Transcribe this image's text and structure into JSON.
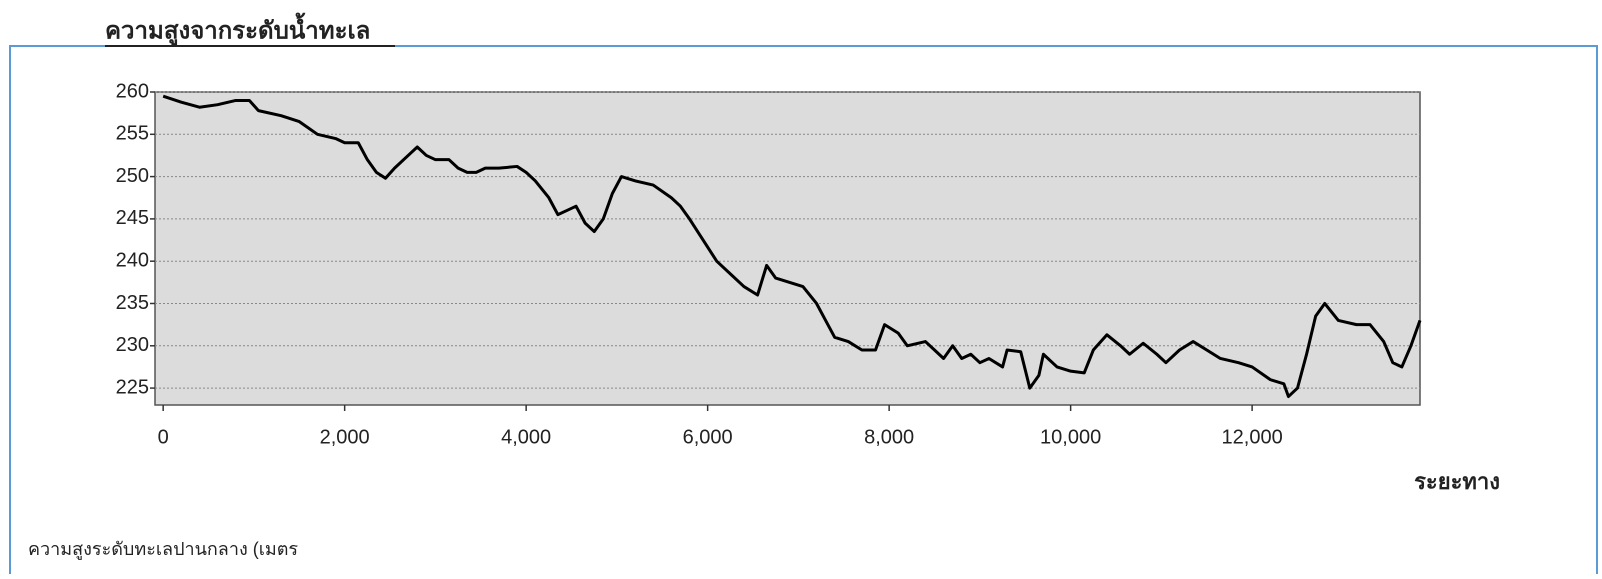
{
  "chart_data": {
    "type": "line",
    "title": "ความสูงจากระดับน้ำทะเล",
    "x_label": "ระยะทาง",
    "y_label": "ความสูงระดับทะเลปานกลาง (เมตร",
    "color": "#000000",
    "grid": true,
    "xlim": [
      -90,
      13850
    ],
    "ylim": [
      223,
      260
    ],
    "xticks": [
      0,
      {
        "value": 2000,
        "label": "2,000"
      },
      {
        "value": 4000,
        "label": "4,000"
      },
      {
        "value": 6000,
        "label": "6,000"
      },
      {
        "value": 8000,
        "label": "8,000"
      },
      {
        "value": 10000,
        "label": "10,000"
      },
      {
        "value": 12000,
        "label": "12,000"
      }
    ],
    "yticks": [
      225,
      230,
      235,
      240,
      245,
      250,
      255,
      260
    ],
    "x": [
      0,
      200,
      400,
      600,
      800,
      950,
      1050,
      1300,
      1500,
      1700,
      1900,
      2000,
      2150,
      2250,
      2350,
      2450,
      2550,
      2700,
      2800,
      2900,
      3000,
      3150,
      3250,
      3350,
      3450,
      3550,
      3700,
      3900,
      4000,
      4100,
      4250,
      4350,
      4450,
      4550,
      4650,
      4750,
      4850,
      4950,
      5050,
      5200,
      5400,
      5600,
      5700,
      5800,
      5950,
      6100,
      6250,
      6400,
      6550,
      6650,
      6750,
      6900,
      7050,
      7200,
      7300,
      7400,
      7550,
      7700,
      7850,
      7950,
      8100,
      8200,
      8400,
      8500,
      8600,
      8700,
      8800,
      8900,
      9000,
      9100,
      9250,
      9300,
      9450,
      9550,
      9650,
      9700,
      9850,
      10000,
      10150,
      10250,
      10400,
      10550,
      10650,
      10800,
      10950,
      11050,
      11200,
      11350,
      11500,
      11650,
      11850,
      12000,
      12200,
      12350,
      12400,
      12500,
      12600,
      12700,
      12800,
      12950,
      13150,
      13300,
      13450,
      13550,
      13650,
      13750,
      13850
    ],
    "values": [
      259.5,
      258.8,
      258.2,
      258.5,
      259,
      259,
      257.8,
      257.2,
      256.5,
      255,
      254.5,
      254,
      254,
      252,
      250.5,
      249.8,
      251,
      252.5,
      253.5,
      252.5,
      252,
      252,
      251,
      250.5,
      250.5,
      251,
      251,
      251.2,
      250.5,
      249.5,
      247.5,
      245.5,
      246,
      246.5,
      244.5,
      243.5,
      245,
      248,
      250,
      249.5,
      249,
      247.5,
      246.5,
      245,
      242.5,
      240,
      238.5,
      237,
      236,
      239.5,
      238,
      237.5,
      237,
      235,
      233,
      231,
      230.5,
      229.5,
      229.5,
      232.5,
      231.5,
      230,
      230.5,
      229.5,
      228.5,
      230,
      228.5,
      229,
      228,
      228.5,
      227.5,
      229.5,
      229.3,
      225,
      226.5,
      229,
      227.5,
      227,
      226.8,
      229.5,
      231.3,
      230,
      229,
      230.3,
      229,
      228,
      229.5,
      230.5,
      229.5,
      228.5,
      228,
      227.5,
      226,
      225.5,
      224,
      225,
      229,
      233.5,
      235,
      233,
      232.5,
      232.5,
      230.5,
      228,
      227.5,
      230,
      233
    ]
  }
}
